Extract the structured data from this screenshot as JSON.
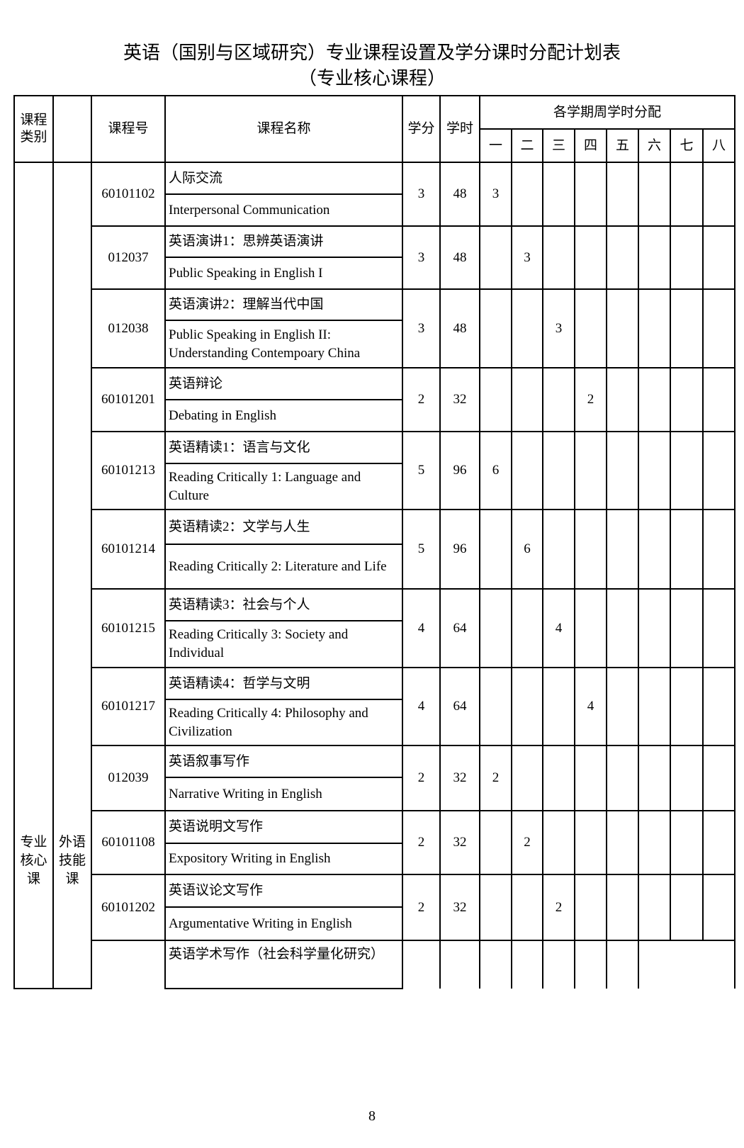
{
  "title": "英语（国别与区域研究）专业课程设置及学分课时分配计划表",
  "subtitle": "（专业核心课程）",
  "header": {
    "category": "课程类别",
    "code": "课程号",
    "name": "课程名称",
    "credits": "学分",
    "hours": "学时",
    "semester_group": "各学期周学时分配",
    "semesters": [
      "一",
      "二",
      "三",
      "四",
      "五",
      "六",
      "七",
      "八"
    ]
  },
  "category": "专业核心课",
  "subcategory": "外语技能课",
  "courses": [
    {
      "code": "60101102",
      "cn": "人际交流",
      "en": "Interpersonal Communication",
      "credits": "3",
      "hours": "48",
      "semester": 1,
      "weekly": "3"
    },
    {
      "code": "012037",
      "cn": "英语演讲1：思辨英语演讲",
      "en": "Public Speaking in English I",
      "credits": "3",
      "hours": "48",
      "semester": 2,
      "weekly": "3"
    },
    {
      "code": "012038",
      "cn": "英语演讲2：理解当代中国",
      "en": "Public Speaking in English II: Understanding Contempoary China",
      "credits": "3",
      "hours": "48",
      "semester": 3,
      "weekly": "3"
    },
    {
      "code": "60101201",
      "cn": "英语辩论",
      "en": "Debating in English",
      "credits": "2",
      "hours": "32",
      "semester": 4,
      "weekly": "2"
    },
    {
      "code": "60101213",
      "cn": "英语精读1：语言与文化",
      "en": "Reading Critically 1: Language and Culture",
      "credits": "5",
      "hours": "96",
      "semester": 1,
      "weekly": "6"
    },
    {
      "code": "60101214",
      "cn": "英语精读2：文学与人生",
      "en": "Reading Critically 2: Literature and Life",
      "credits": "5",
      "hours": "96",
      "semester": 2,
      "weekly": "6"
    },
    {
      "code": "60101215",
      "cn": "英语精读3：社会与个人",
      "en": "Reading Critically 3: Society and Individual",
      "credits": "4",
      "hours": "64",
      "semester": 3,
      "weekly": "4"
    },
    {
      "code": "60101217",
      "cn": "英语精读4：哲学与文明",
      "en": "Reading Critically 4: Philosophy and Civilization",
      "credits": "4",
      "hours": "64",
      "semester": 4,
      "weekly": "4"
    },
    {
      "code": "012039",
      "cn": "英语叙事写作",
      "en": "Narrative Writing in English",
      "credits": "2",
      "hours": "32",
      "semester": 1,
      "weekly": "2"
    },
    {
      "code": "60101108",
      "cn": "英语说明文写作",
      "en": "Expository Writing in English",
      "credits": "2",
      "hours": "32",
      "semester": 2,
      "weekly": "2"
    },
    {
      "code": "60101202",
      "cn": "英语议论文写作",
      "en": "Argumentative Writing in English",
      "credits": "2",
      "hours": "32",
      "semester": 3,
      "weekly": "2"
    }
  ],
  "last_course": {
    "cn": "英语学术写作（社会科学量化研究）"
  },
  "page_number": "8"
}
